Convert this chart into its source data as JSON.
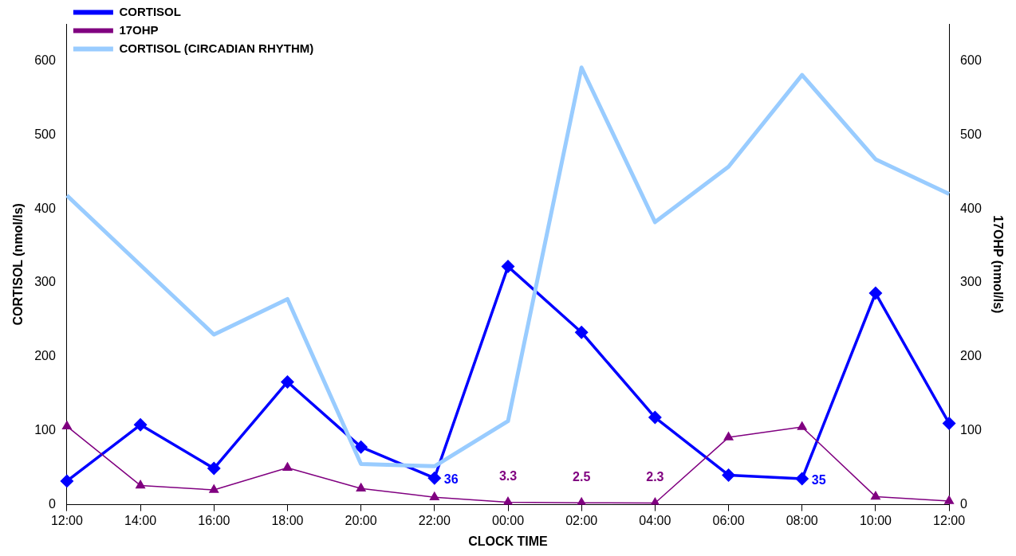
{
  "chart_data": {
    "type": "line",
    "xlabel": "CLOCK TIME",
    "ylabel": "CORTISOL (nmol/ls)",
    "y2label": "17OHP (nmol/ls)",
    "categories": [
      "12:00",
      "14:00",
      "16:00",
      "18:00",
      "20:00",
      "22:00",
      "00:00",
      "02:00",
      "04:00",
      "06:00",
      "08:00",
      "10:00",
      "12:00"
    ],
    "series": [
      {
        "name": "CORTISOL",
        "color": "#0000ff",
        "marker": "diamond",
        "values": [
          32,
          108,
          49,
          166,
          78,
          36,
          322,
          233,
          118,
          40,
          35,
          286,
          110
        ],
        "value_labels": [
          null,
          null,
          null,
          null,
          null,
          "36",
          null,
          null,
          null,
          null,
          "35",
          null,
          null
        ]
      },
      {
        "name": "17OHP",
        "color": "#800080",
        "marker": "triangle",
        "axis": "y2",
        "values": [
          106,
          26,
          20,
          50,
          22,
          10,
          3.3,
          2.5,
          2.3,
          91,
          105,
          11,
          5
        ],
        "value_labels": [
          null,
          null,
          null,
          null,
          null,
          null,
          "3.3",
          "2.5",
          "2.3",
          null,
          null,
          null,
          null
        ]
      },
      {
        "name": "CORTISOL (CIRCADIAN RHYTHM)",
        "color": "#99ccff",
        "marker": "none",
        "values": [
          418,
          324,
          230,
          278,
          55,
          52,
          113,
          591,
          382,
          457,
          581,
          467,
          420
        ]
      }
    ],
    "ylim": [
      0,
      650
    ],
    "yticks": [
      0,
      100,
      200,
      300,
      400,
      500,
      600
    ],
    "y2lim": [
      0,
      650
    ],
    "y2ticks": [
      0,
      100,
      200,
      300,
      400,
      500,
      600
    ],
    "grid": false,
    "legend": "top left"
  }
}
